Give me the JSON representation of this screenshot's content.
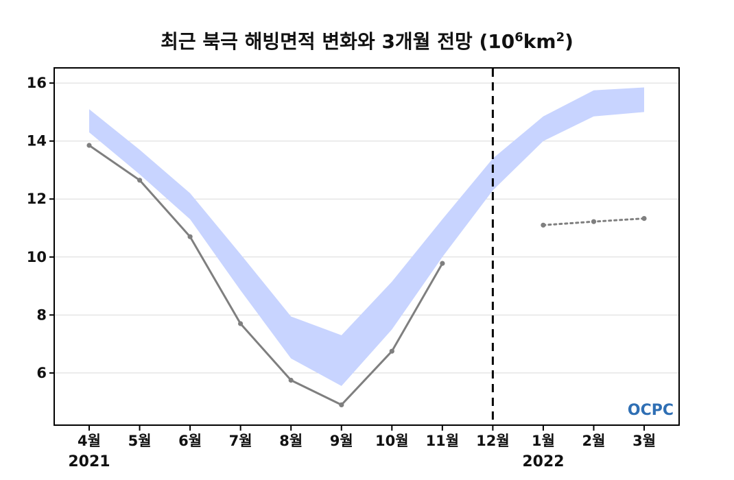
{
  "chart_data": {
    "type": "line",
    "title": "최근 북극 해빙면적 변화와 3개월 전망",
    "title_unit_base": "(10",
    "title_unit_exp1": "6",
    "title_unit_mid": "km",
    "title_unit_exp2": "2",
    "title_unit_end": ")",
    "categories": [
      "4월",
      "5월",
      "6월",
      "7월",
      "8월",
      "9월",
      "10월",
      "11월",
      "12월",
      "1월",
      "2월",
      "3월"
    ],
    "year_labels": [
      {
        "category": "4월",
        "text": "2021"
      },
      {
        "category": "1월",
        "text": "2022"
      }
    ],
    "ylim": [
      4.2,
      16.5
    ],
    "yticks": [
      6,
      8,
      10,
      12,
      14,
      16
    ],
    "grid": true,
    "divider_category": "12월",
    "band": {
      "upper": [
        15.1,
        13.7,
        12.2,
        10.1,
        7.95,
        7.3,
        9.15,
        11.3,
        13.4,
        14.85,
        15.75,
        15.85
      ],
      "lower": [
        14.3,
        12.85,
        11.3,
        8.85,
        6.5,
        5.55,
        7.5,
        10.0,
        12.3,
        14.0,
        14.85,
        15.0
      ],
      "color": "#c8d4ff"
    },
    "series": [
      {
        "values": [
          13.85,
          12.65,
          10.7,
          7.7,
          5.75,
          4.9,
          6.75,
          9.78,
          null,
          null,
          null,
          null
        ],
        "style": "solid",
        "color": "#7f7f7f"
      },
      {
        "values": [
          null,
          null,
          null,
          null,
          null,
          null,
          null,
          null,
          null,
          11.1,
          11.22,
          11.33
        ],
        "style": "dotted",
        "color": "#7f7f7f"
      }
    ],
    "watermark": "OCPC"
  }
}
